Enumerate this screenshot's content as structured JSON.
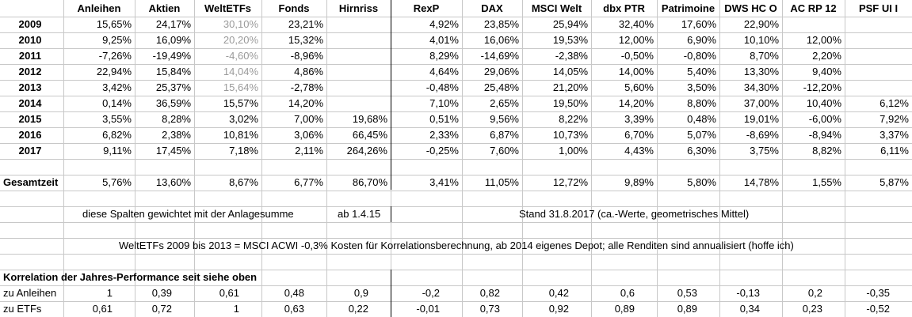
{
  "header": {
    "columns": [
      "Anleihen",
      "Aktien",
      "WeltETFs",
      "Fonds",
      "Hirnriss",
      "RexP",
      "DAX",
      "MSCI Welt",
      "dbx PTR",
      "Patrimoine",
      "DWS HC O",
      "AC RP 12",
      "PSF UI I"
    ]
  },
  "rows": [
    {
      "year": "2009",
      "cells": [
        "15,65%",
        "24,17%",
        "30,10%",
        "23,21%",
        "",
        "4,92%",
        "23,85%",
        "25,94%",
        "32,40%",
        "17,60%",
        "22,90%",
        "",
        ""
      ]
    },
    {
      "year": "2010",
      "cells": [
        "9,25%",
        "16,09%",
        "20,20%",
        "15,32%",
        "",
        "4,01%",
        "16,06%",
        "19,53%",
        "12,00%",
        "6,90%",
        "10,10%",
        "12,00%",
        ""
      ]
    },
    {
      "year": "2011",
      "cells": [
        "-7,26%",
        "-19,49%",
        "-4,60%",
        "-8,96%",
        "",
        "8,29%",
        "-14,69%",
        "-2,38%",
        "-0,50%",
        "-0,80%",
        "8,70%",
        "2,20%",
        ""
      ]
    },
    {
      "year": "2012",
      "cells": [
        "22,94%",
        "15,84%",
        "14,04%",
        "4,86%",
        "",
        "4,64%",
        "29,06%",
        "14,05%",
        "14,00%",
        "5,40%",
        "13,30%",
        "9,40%",
        ""
      ]
    },
    {
      "year": "2013",
      "cells": [
        "3,42%",
        "25,37%",
        "15,64%",
        "-2,78%",
        "",
        "-0,48%",
        "25,48%",
        "21,20%",
        "5,60%",
        "3,50%",
        "34,30%",
        "-12,20%",
        ""
      ]
    },
    {
      "year": "2014",
      "cells": [
        "0,14%",
        "36,59%",
        "15,57%",
        "14,20%",
        "",
        "7,10%",
        "2,65%",
        "19,50%",
        "14,20%",
        "8,80%",
        "37,00%",
        "10,40%",
        "6,12%"
      ]
    },
    {
      "year": "2015",
      "cells": [
        "3,55%",
        "8,28%",
        "3,02%",
        "7,00%",
        "19,68%",
        "0,51%",
        "9,56%",
        "8,22%",
        "3,39%",
        "0,48%",
        "19,01%",
        "-6,00%",
        "7,92%"
      ]
    },
    {
      "year": "2016",
      "cells": [
        "6,82%",
        "2,38%",
        "10,81%",
        "3,06%",
        "66,45%",
        "2,33%",
        "6,87%",
        "10,73%",
        "6,70%",
        "5,07%",
        "-8,69%",
        "-8,94%",
        "3,37%"
      ]
    },
    {
      "year": "2017",
      "cells": [
        "9,11%",
        "17,45%",
        "7,18%",
        "2,11%",
        "264,26%",
        "-0,25%",
        "7,60%",
        "1,00%",
        "4,43%",
        "6,30%",
        "3,75%",
        "8,82%",
        "6,11%"
      ]
    }
  ],
  "total": {
    "label": "Gesamtzeit",
    "cells": [
      "5,76%",
      "13,60%",
      "8,67%",
      "6,77%",
      "86,70%",
      "3,41%",
      "11,05%",
      "12,72%",
      "9,89%",
      "5,80%",
      "14,78%",
      "1,55%",
      "5,87%"
    ]
  },
  "notes": {
    "weighted": "diese Spalten gewichtet mit der Anlagesumme",
    "from": "ab 1.4.15",
    "stand": "Stand 31.8.2017 (ca.-Werte, geometrisches Mittel)",
    "weltetfs": "WeltETFs 2009 bis 2013 = MSCI ACWI -0,3% Kosten für Korrelationsberechnung, ab 2014 eigenes Depot; alle Renditen sind annualisiert (hoffe ich)"
  },
  "correlation": {
    "title": "Korrelation der Jahres-Performance seit siehe oben",
    "rows": [
      {
        "label": "zu Anleihen",
        "cells": [
          "1",
          "0,39",
          "0,61",
          "0,48",
          "0,9",
          "-0,2",
          "0,82",
          "0,42",
          "0,6",
          "0,53",
          "-0,13",
          "0,2",
          "-0,35"
        ]
      },
      {
        "label": "zu ETFs",
        "cells": [
          "0,61",
          "0,72",
          "1",
          "0,63",
          "0,22",
          "-0,01",
          "0,73",
          "0,92",
          "0,89",
          "0,89",
          "0,34",
          "0,23",
          "-0,52"
        ]
      }
    ]
  },
  "style": {
    "grey_text": "#9a9a9a",
    "grid": "#c8c8c8",
    "divider": "#000000"
  }
}
